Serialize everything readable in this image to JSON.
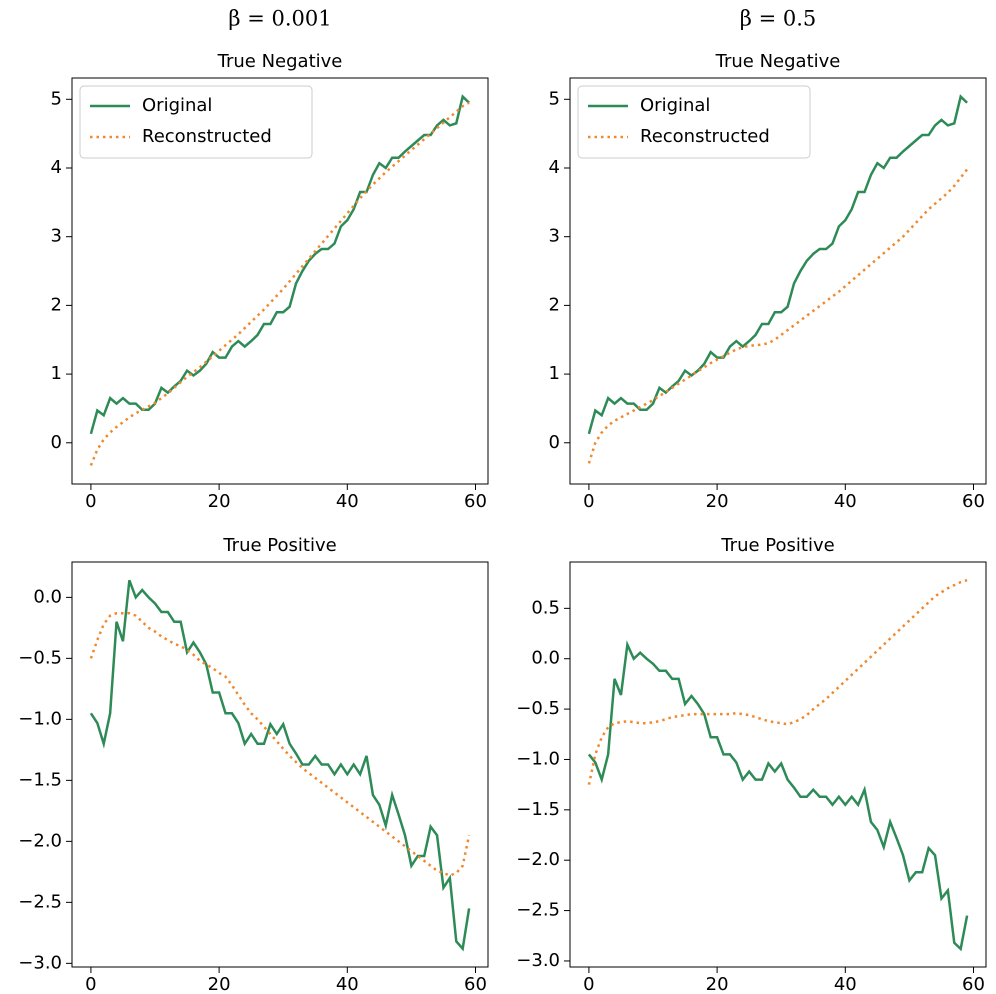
{
  "column_titles": [
    "β = 0.001",
    "β = 0.5"
  ],
  "chart_data": [
    {
      "type": "line",
      "title": "True Negative",
      "x": [
        0,
        1,
        2,
        3,
        4,
        5,
        6,
        7,
        8,
        9,
        10,
        11,
        12,
        13,
        14,
        15,
        16,
        17,
        18,
        19,
        20,
        21,
        22,
        23,
        24,
        25,
        26,
        27,
        28,
        29,
        30,
        31,
        32,
        33,
        34,
        35,
        36,
        37,
        38,
        39,
        40,
        41,
        42,
        43,
        44,
        45,
        46,
        47,
        48,
        49,
        50,
        51,
        52,
        53,
        54,
        55,
        56,
        57,
        58,
        59
      ],
      "series": [
        {
          "name": "Original",
          "color": "#2e8b57",
          "linestyle": "solid",
          "values": [
            0.13,
            0.47,
            0.4,
            0.65,
            0.57,
            0.65,
            0.57,
            0.57,
            0.48,
            0.48,
            0.57,
            0.8,
            0.73,
            0.82,
            0.9,
            1.05,
            0.98,
            1.05,
            1.15,
            1.32,
            1.24,
            1.24,
            1.4,
            1.48,
            1.4,
            1.48,
            1.57,
            1.73,
            1.73,
            1.9,
            1.9,
            1.98,
            2.32,
            2.5,
            2.65,
            2.75,
            2.82,
            2.82,
            2.9,
            3.15,
            3.24,
            3.4,
            3.65,
            3.65,
            3.9,
            4.07,
            4.0,
            4.15,
            4.15,
            4.24,
            4.32,
            4.4,
            4.48,
            4.48,
            4.62,
            4.7,
            4.62,
            4.65,
            5.04,
            4.95
          ]
        },
        {
          "name": "Reconstructed",
          "color": "#f0892e",
          "linestyle": "dotted",
          "values": [
            -0.33,
            -0.1,
            0.05,
            0.15,
            0.23,
            0.3,
            0.37,
            0.43,
            0.48,
            0.53,
            0.58,
            0.65,
            0.72,
            0.8,
            0.88,
            0.96,
            1.03,
            1.1,
            1.18,
            1.26,
            1.34,
            1.42,
            1.5,
            1.58,
            1.67,
            1.76,
            1.85,
            1.94,
            2.04,
            2.14,
            2.24,
            2.35,
            2.46,
            2.57,
            2.68,
            2.79,
            2.9,
            3.01,
            3.12,
            3.23,
            3.34,
            3.45,
            3.56,
            3.66,
            3.76,
            3.85,
            3.94,
            4.02,
            4.1,
            4.18,
            4.26,
            4.34,
            4.42,
            4.5,
            4.58,
            4.66,
            4.74,
            4.82,
            4.9,
            4.95
          ]
        }
      ],
      "xlim": [
        -2.95,
        61.95
      ],
      "ylim": [
        -0.6,
        5.31
      ],
      "xticks": [
        0,
        20,
        40,
        60
      ],
      "yticks": [
        0,
        1,
        2,
        3,
        4,
        5
      ],
      "legend": "upper left"
    },
    {
      "type": "line",
      "title": "True Negative",
      "x": [
        0,
        1,
        2,
        3,
        4,
        5,
        6,
        7,
        8,
        9,
        10,
        11,
        12,
        13,
        14,
        15,
        16,
        17,
        18,
        19,
        20,
        21,
        22,
        23,
        24,
        25,
        26,
        27,
        28,
        29,
        30,
        31,
        32,
        33,
        34,
        35,
        36,
        37,
        38,
        39,
        40,
        41,
        42,
        43,
        44,
        45,
        46,
        47,
        48,
        49,
        50,
        51,
        52,
        53,
        54,
        55,
        56,
        57,
        58,
        59
      ],
      "series": [
        {
          "name": "Original",
          "color": "#2e8b57",
          "linestyle": "solid",
          "values": [
            0.13,
            0.47,
            0.4,
            0.65,
            0.57,
            0.65,
            0.57,
            0.57,
            0.48,
            0.48,
            0.57,
            0.8,
            0.73,
            0.82,
            0.9,
            1.05,
            0.98,
            1.05,
            1.15,
            1.32,
            1.24,
            1.24,
            1.4,
            1.48,
            1.4,
            1.48,
            1.57,
            1.73,
            1.73,
            1.9,
            1.9,
            1.98,
            2.32,
            2.5,
            2.65,
            2.75,
            2.82,
            2.82,
            2.9,
            3.15,
            3.24,
            3.4,
            3.65,
            3.65,
            3.9,
            4.07,
            4.0,
            4.15,
            4.15,
            4.24,
            4.32,
            4.4,
            4.48,
            4.48,
            4.62,
            4.7,
            4.62,
            4.65,
            5.04,
            4.95
          ]
        },
        {
          "name": "Reconstructed",
          "color": "#f0892e",
          "linestyle": "dotted",
          "values": [
            -0.3,
            0,
            0.15,
            0.25,
            0.32,
            0.37,
            0.42,
            0.47,
            0.52,
            0.57,
            0.62,
            0.68,
            0.74,
            0.8,
            0.86,
            0.92,
            0.98,
            1.04,
            1.1,
            1.16,
            1.21,
            1.26,
            1.31,
            1.36,
            1.39,
            1.41,
            1.42,
            1.43,
            1.45,
            1.5,
            1.57,
            1.64,
            1.71,
            1.78,
            1.85,
            1.92,
            1.99,
            2.06,
            2.13,
            2.2,
            2.28,
            2.36,
            2.44,
            2.52,
            2.6,
            2.68,
            2.76,
            2.84,
            2.92,
            3.0,
            3.1,
            3.2,
            3.3,
            3.4,
            3.48,
            3.56,
            3.64,
            3.74,
            3.86,
            3.98
          ]
        }
      ],
      "xlim": [
        -2.95,
        61.95
      ],
      "ylim": [
        -0.6,
        5.31
      ],
      "xticks": [
        0,
        20,
        40,
        60
      ],
      "yticks": [
        0,
        1,
        2,
        3,
        4,
        5
      ],
      "legend": "upper left"
    },
    {
      "type": "line",
      "title": "True Positive",
      "x": [
        0,
        1,
        2,
        3,
        4,
        5,
        6,
        7,
        8,
        9,
        10,
        11,
        12,
        13,
        14,
        15,
        16,
        17,
        18,
        19,
        20,
        21,
        22,
        23,
        24,
        25,
        26,
        27,
        28,
        29,
        30,
        31,
        32,
        33,
        34,
        35,
        36,
        37,
        38,
        39,
        40,
        41,
        42,
        43,
        44,
        45,
        46,
        47,
        48,
        49,
        50,
        51,
        52,
        53,
        54,
        55,
        56,
        57,
        58,
        59
      ],
      "series": [
        {
          "name": "Original",
          "color": "#2e8b57",
          "linestyle": "solid",
          "values": [
            -0.95,
            -1.03,
            -1.2,
            -0.95,
            -0.2,
            -0.36,
            0.14,
            0.0,
            0.06,
            0.0,
            -0.05,
            -0.12,
            -0.12,
            -0.2,
            -0.2,
            -0.45,
            -0.37,
            -0.45,
            -0.55,
            -0.78,
            -0.78,
            -0.95,
            -0.95,
            -1.03,
            -1.2,
            -1.12,
            -1.2,
            -1.2,
            -1.04,
            -1.12,
            -1.04,
            -1.2,
            -1.28,
            -1.37,
            -1.37,
            -1.3,
            -1.37,
            -1.37,
            -1.45,
            -1.37,
            -1.45,
            -1.37,
            -1.45,
            -1.3,
            -1.62,
            -1.7,
            -1.87,
            -1.62,
            -1.78,
            -1.95,
            -2.2,
            -2.12,
            -2.12,
            -1.88,
            -1.95,
            -2.38,
            -2.3,
            -2.82,
            -2.88,
            -2.55
          ]
        },
        {
          "name": "Reconstructed",
          "color": "#f0892e",
          "linestyle": "dotted",
          "values": [
            -0.5,
            -0.35,
            -0.22,
            -0.15,
            -0.13,
            -0.13,
            -0.13,
            -0.15,
            -0.2,
            -0.25,
            -0.28,
            -0.32,
            -0.35,
            -0.38,
            -0.4,
            -0.43,
            -0.47,
            -0.52,
            -0.55,
            -0.58,
            -0.62,
            -0.65,
            -0.72,
            -0.8,
            -0.88,
            -0.95,
            -1.0,
            -1.06,
            -1.12,
            -1.18,
            -1.24,
            -1.3,
            -1.35,
            -1.4,
            -1.44,
            -1.48,
            -1.52,
            -1.56,
            -1.6,
            -1.64,
            -1.68,
            -1.72,
            -1.76,
            -1.8,
            -1.84,
            -1.88,
            -1.92,
            -1.96,
            -2.0,
            -2.04,
            -2.08,
            -2.12,
            -2.16,
            -2.2,
            -2.24,
            -2.26,
            -2.28,
            -2.26,
            -2.2,
            -1.95
          ]
        }
      ],
      "xlim": [
        -2.95,
        61.95
      ],
      "ylim": [
        -3.03,
        0.29
      ],
      "xticks": [
        0,
        20,
        40,
        60
      ],
      "yticks": [
        {
          "value": 0,
          "label": "0.0"
        },
        {
          "value": -0.5,
          "label": "−0.5"
        },
        {
          "value": -1,
          "label": "−1.0"
        },
        {
          "value": -1.5,
          "label": "−1.5"
        },
        {
          "value": -2,
          "label": "−2.0"
        },
        {
          "value": -2.5,
          "label": "−2.5"
        },
        {
          "value": -3,
          "label": "−3.0"
        }
      ]
    },
    {
      "type": "line",
      "title": "True Positive",
      "x": [
        0,
        1,
        2,
        3,
        4,
        5,
        6,
        7,
        8,
        9,
        10,
        11,
        12,
        13,
        14,
        15,
        16,
        17,
        18,
        19,
        20,
        21,
        22,
        23,
        24,
        25,
        26,
        27,
        28,
        29,
        30,
        31,
        32,
        33,
        34,
        35,
        36,
        37,
        38,
        39,
        40,
        41,
        42,
        43,
        44,
        45,
        46,
        47,
        48,
        49,
        50,
        51,
        52,
        53,
        54,
        55,
        56,
        57,
        58,
        59
      ],
      "series": [
        {
          "name": "Original",
          "color": "#2e8b57",
          "linestyle": "solid",
          "values": [
            -0.95,
            -1.03,
            -1.2,
            -0.95,
            -0.2,
            -0.36,
            0.14,
            0.0,
            0.06,
            0.0,
            -0.05,
            -0.12,
            -0.12,
            -0.2,
            -0.2,
            -0.45,
            -0.37,
            -0.45,
            -0.55,
            -0.78,
            -0.78,
            -0.95,
            -0.95,
            -1.03,
            -1.2,
            -1.12,
            -1.2,
            -1.2,
            -1.04,
            -1.12,
            -1.04,
            -1.2,
            -1.28,
            -1.37,
            -1.37,
            -1.3,
            -1.37,
            -1.37,
            -1.45,
            -1.37,
            -1.45,
            -1.37,
            -1.45,
            -1.3,
            -1.62,
            -1.7,
            -1.87,
            -1.62,
            -1.78,
            -1.95,
            -2.2,
            -2.12,
            -2.12,
            -1.88,
            -1.95,
            -2.38,
            -2.3,
            -2.82,
            -2.88,
            -2.55
          ]
        },
        {
          "name": "Reconstructed",
          "color": "#f0892e",
          "linestyle": "dotted",
          "values": [
            -1.25,
            -0.95,
            -0.78,
            -0.68,
            -0.64,
            -0.63,
            -0.62,
            -0.63,
            -0.64,
            -0.64,
            -0.63,
            -0.62,
            -0.6,
            -0.58,
            -0.57,
            -0.56,
            -0.55,
            -0.55,
            -0.55,
            -0.55,
            -0.55,
            -0.55,
            -0.55,
            -0.54,
            -0.55,
            -0.56,
            -0.58,
            -0.6,
            -0.62,
            -0.63,
            -0.64,
            -0.65,
            -0.63,
            -0.6,
            -0.56,
            -0.5,
            -0.45,
            -0.4,
            -0.34,
            -0.28,
            -0.22,
            -0.16,
            -0.1,
            -0.04,
            0.02,
            0.08,
            0.14,
            0.2,
            0.26,
            0.32,
            0.38,
            0.44,
            0.5,
            0.56,
            0.62,
            0.66,
            0.7,
            0.73,
            0.76,
            0.78
          ]
        }
      ],
      "xlim": [
        -2.95,
        61.95
      ],
      "ylim": [
        -3.06,
        0.96
      ],
      "xticks": [
        0,
        20,
        40,
        60
      ],
      "yticks": [
        {
          "value": 0.5,
          "label": "0.5"
        },
        {
          "value": 0,
          "label": "0.0"
        },
        {
          "value": -0.5,
          "label": "−0.5"
        },
        {
          "value": -1,
          "label": "−1.0"
        },
        {
          "value": -1.5,
          "label": "−1.5"
        },
        {
          "value": -2,
          "label": "−2.0"
        },
        {
          "value": -2.5,
          "label": "−2.5"
        },
        {
          "value": -3,
          "label": "−3.0"
        }
      ]
    }
  ]
}
